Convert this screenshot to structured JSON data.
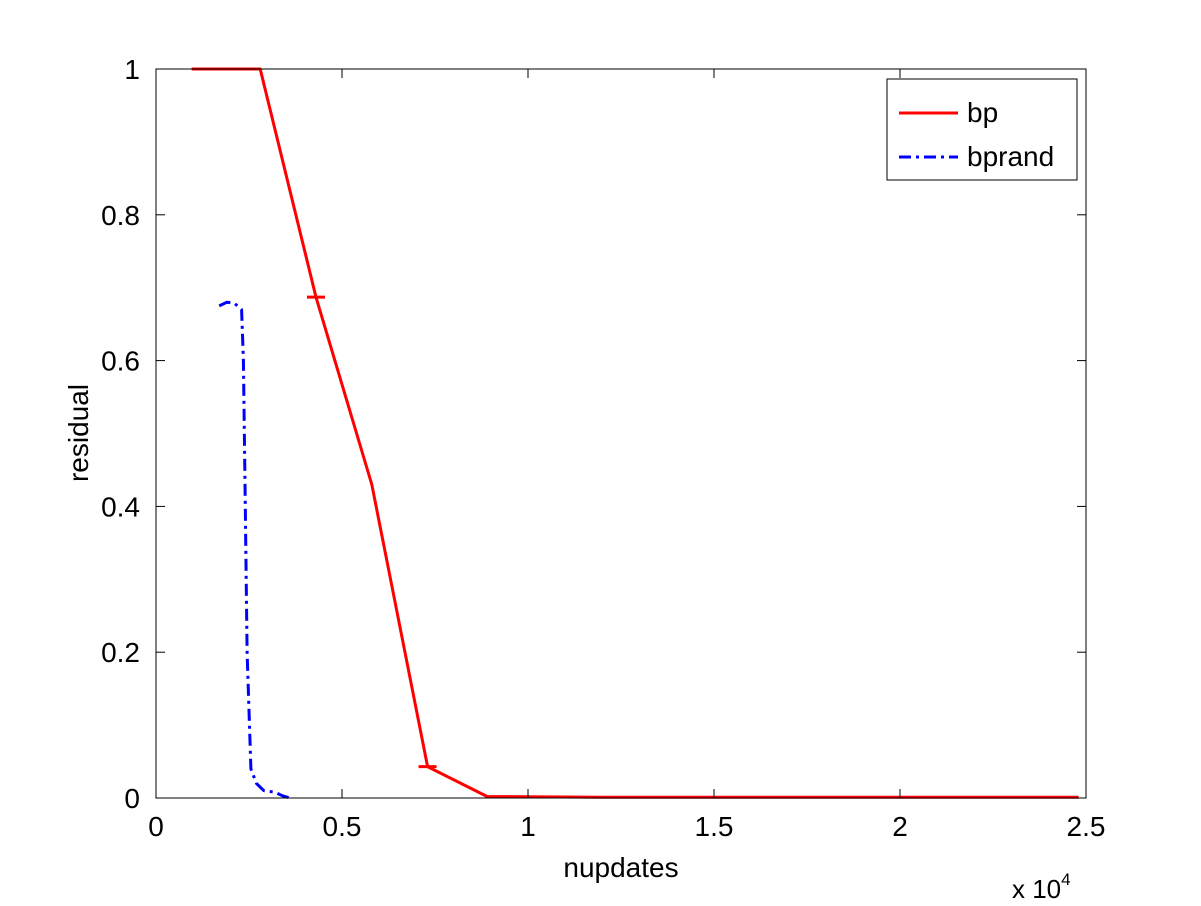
{
  "chart_data": {
    "type": "line",
    "xlabel": "nupdates",
    "ylabel": "residual",
    "x_multiplier": {
      "base": "x 10",
      "exponent": "4"
    },
    "xlim": [
      0,
      2.5
    ],
    "ylim": [
      0,
      1
    ],
    "x_ticks": [
      0,
      0.5,
      1,
      1.5,
      2,
      2.5
    ],
    "x_tick_labels": [
      "0",
      "0.5",
      "1",
      "1.5",
      "2",
      "2.5"
    ],
    "y_ticks": [
      0,
      0.2,
      0.4,
      0.6,
      0.8,
      1
    ],
    "y_tick_labels": [
      "0",
      "0.2",
      "0.4",
      "0.6",
      "0.8",
      "1"
    ],
    "grid": false,
    "legend": {
      "position": "top-right"
    },
    "series": [
      {
        "name": "bp",
        "color": "#ff0000",
        "style": "solid",
        "points": [
          [
            0.11,
            1.0
          ],
          [
            0.28,
            1.0
          ],
          [
            0.43,
            0.687
          ],
          [
            0.58,
            0.43
          ],
          [
            0.73,
            0.043
          ],
          [
            0.89,
            0.002
          ],
          [
            1.2,
            0.001
          ],
          [
            2.35,
            0.001
          ],
          [
            2.48,
            0.001
          ]
        ],
        "error_markers": [
          [
            0.12,
            1.0
          ],
          [
            0.43,
            0.687
          ],
          [
            0.73,
            0.043
          ]
        ]
      },
      {
        "name": "bprand",
        "color": "#0000ff",
        "style": "dashdot",
        "points": [
          [
            0.17,
            0.675
          ],
          [
            0.19,
            0.68
          ],
          [
            0.21,
            0.679
          ],
          [
            0.23,
            0.67
          ],
          [
            0.235,
            0.6
          ],
          [
            0.24,
            0.4
          ],
          [
            0.245,
            0.2
          ],
          [
            0.25,
            0.12
          ],
          [
            0.255,
            0.04
          ],
          [
            0.27,
            0.02
          ],
          [
            0.29,
            0.01
          ],
          [
            0.32,
            0.008
          ],
          [
            0.34,
            0.003
          ],
          [
            0.36,
            0.0
          ]
        ]
      }
    ]
  }
}
